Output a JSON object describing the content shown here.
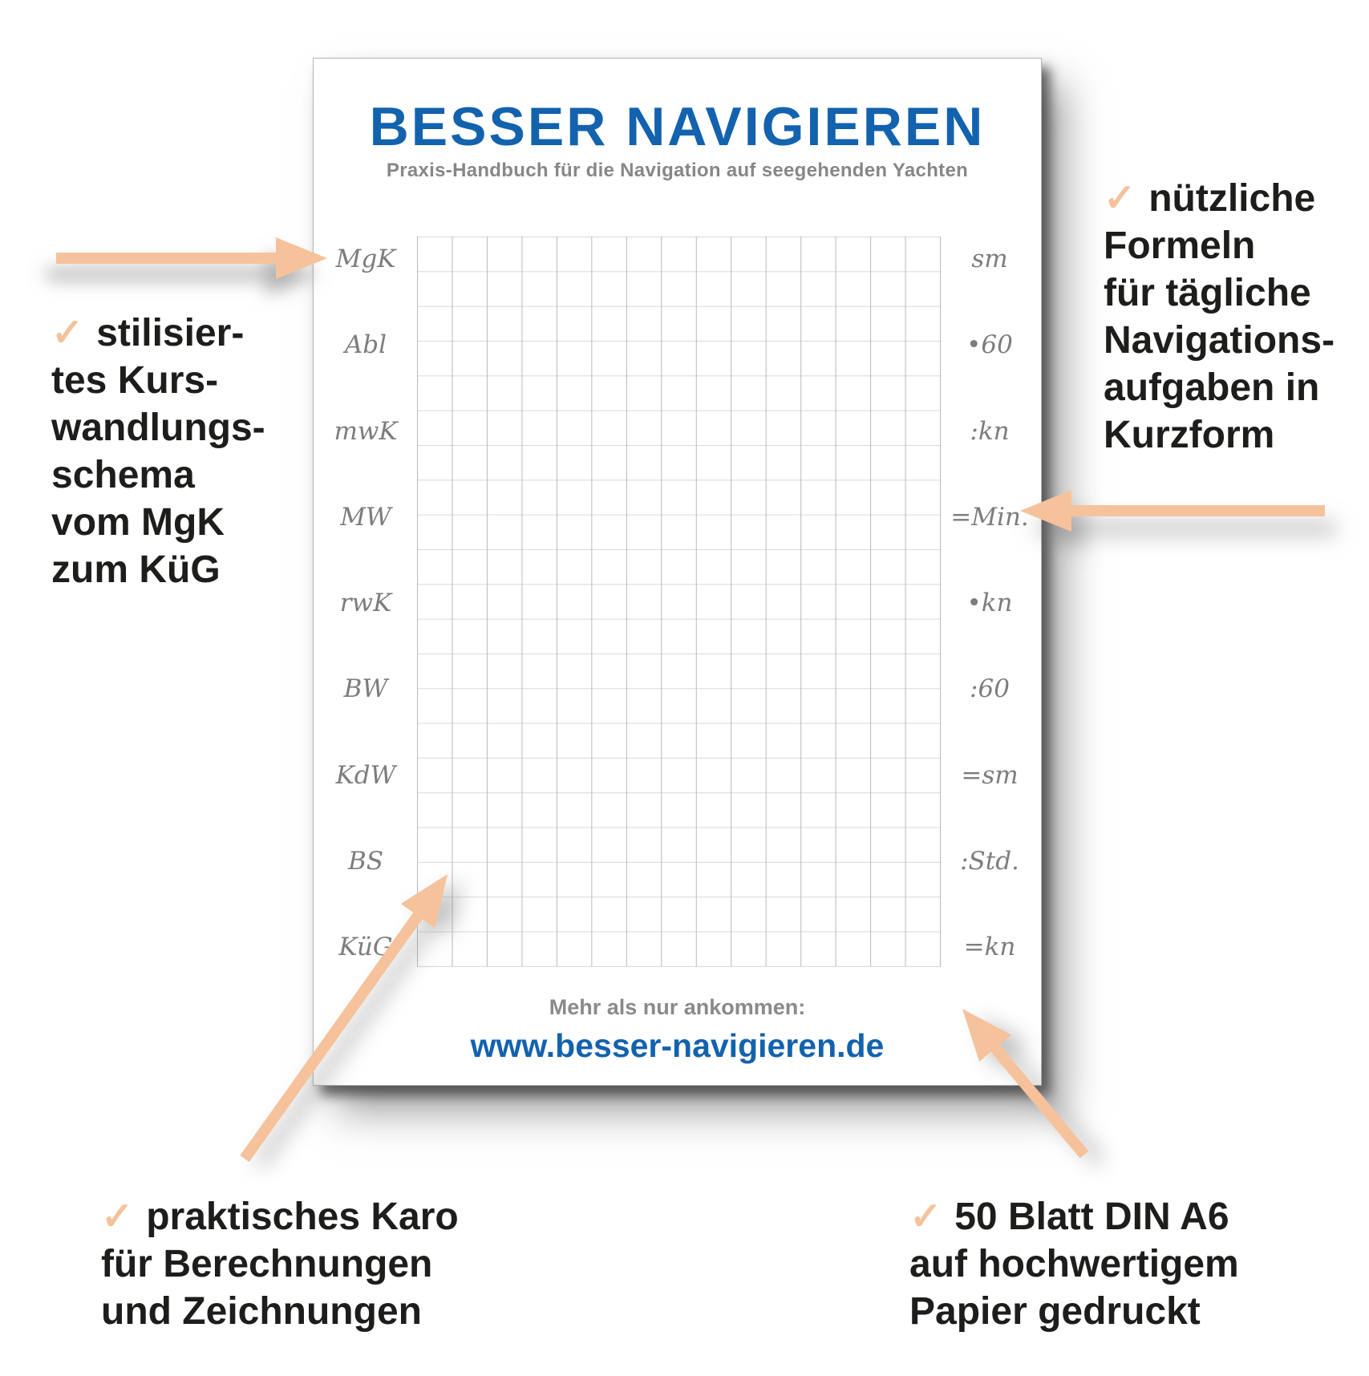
{
  "pad": {
    "title": "BESSER NAVIGIEREN",
    "subtitle": "Praxis-Handbuch für die Navigation auf seegehenden Yachten",
    "left_labels": [
      "MgK",
      "Abl",
      "mwK",
      "MW",
      "rwK",
      "BW",
      "KdW",
      "BS",
      "KüG"
    ],
    "right_labels": [
      "sm",
      "•60",
      ":kn",
      "=Min.",
      "•kn",
      ":60",
      "=sm",
      ":Std.",
      "=kn"
    ],
    "footer_tagline": "Mehr als nur ankommen:",
    "footer_url": "www.besser-navigieren.de"
  },
  "annotations": {
    "left": {
      "check": "✓",
      "lines": [
        "stilisier-",
        "tes Kurs-",
        "wandlungs-",
        "schema",
        "vom MgK",
        "zum KüG"
      ]
    },
    "right": {
      "check": "✓",
      "lines": [
        "nützliche",
        "Formeln",
        "für tägliche",
        "Navigations-",
        "aufgaben in",
        "Kurzform"
      ]
    },
    "bottom_left": {
      "check": "✓",
      "lines": [
        "praktisches Karo",
        "für Berechnungen",
        "und Zeichnungen"
      ]
    },
    "bottom_right": {
      "check": "✓",
      "lines": [
        "50 Blatt DIN A6",
        "auf hochwertigem",
        "Papier gedruckt"
      ]
    }
  },
  "colors": {
    "accent_blue": "#1362ae",
    "arrow_peach": "#f6c29b",
    "subtitle_gray": "#878787",
    "script_gray": "#7d7d80",
    "grid_vertical": "#b9b9bd",
    "grid_horizontal": "#d9d9dc"
  },
  "grid": {
    "columns": 15,
    "rows": 21
  }
}
